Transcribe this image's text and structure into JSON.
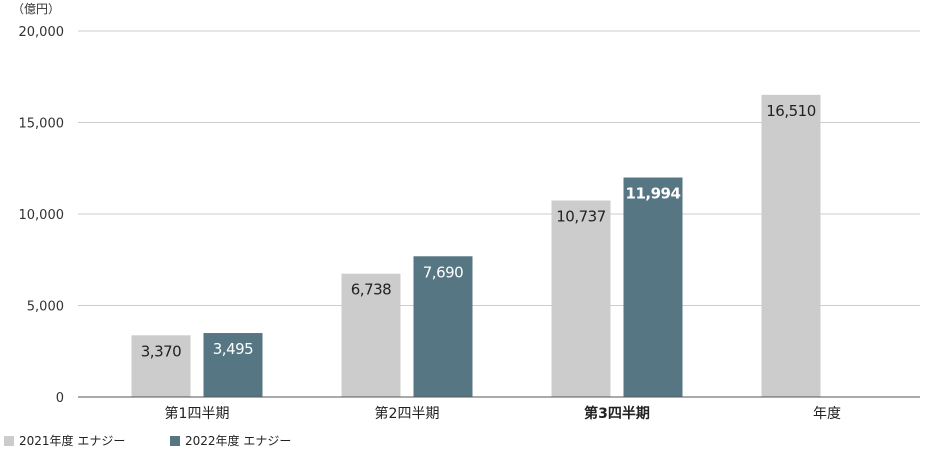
{
  "chart_data": {
    "type": "bar",
    "unit_label": "（億円）",
    "categories": [
      "第1四半期",
      "第2四半期",
      "第3四半期",
      "年度"
    ],
    "highlight_category": "第3四半期",
    "series": [
      {
        "name": "2021年度 エナジー",
        "color": "#cccccc",
        "values": [
          3370,
          6738,
          10737,
          16510
        ],
        "labels": [
          "3,370",
          "6,738",
          "10,737",
          "16,510"
        ]
      },
      {
        "name": "2022年度 エナジー",
        "color": "#567683",
        "values": [
          3495,
          7690,
          11994,
          null
        ],
        "labels": [
          "3,495",
          "7,690",
          "11,994",
          ""
        ]
      }
    ],
    "yticks": [
      {
        "value": 0,
        "label": "0"
      },
      {
        "value": 5000,
        "label": "5,000"
      },
      {
        "value": 10000,
        "label": "10,000"
      },
      {
        "value": 15000,
        "label": "15,000"
      },
      {
        "value": 20000,
        "label": "20,000"
      }
    ],
    "ylim": [
      0,
      20000
    ],
    "grid": true,
    "legend_position": "bottom-left",
    "colors": {
      "axis": "#555555",
      "grid": "#cccccc",
      "highlight_label": "#567683",
      "label_on_light": "#222222",
      "label_on_dark": "#ffffff"
    }
  }
}
